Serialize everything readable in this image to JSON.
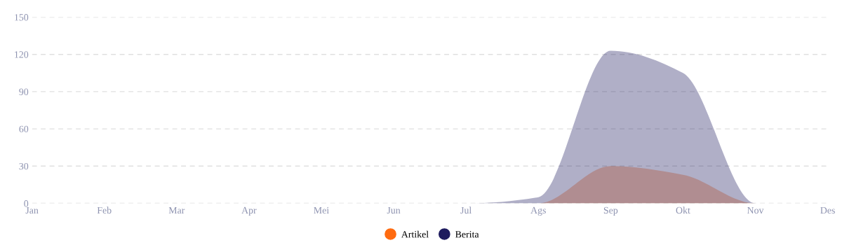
{
  "chart_data": {
    "type": "area",
    "categories": [
      "Jan",
      "Feb",
      "Mar",
      "Apr",
      "Mei",
      "Jun",
      "Jul",
      "Ags",
      "Sep",
      "Okt",
      "Nov",
      "Des"
    ],
    "series": [
      {
        "name": "Artikel",
        "color": "#ff6b10",
        "values": [
          0,
          0,
          0,
          0,
          0,
          0,
          0,
          0,
          30,
          23,
          0,
          0
        ]
      },
      {
        "name": "Berita",
        "color": "#1e1b5e",
        "values": [
          0,
          0,
          0,
          0,
          0,
          0,
          0,
          5,
          123,
          105,
          0,
          0
        ]
      }
    ],
    "ylim": [
      0,
      150
    ],
    "yticks": [
      0,
      30,
      60,
      90,
      120,
      150
    ],
    "grid": "y",
    "legend": "bottom"
  }
}
